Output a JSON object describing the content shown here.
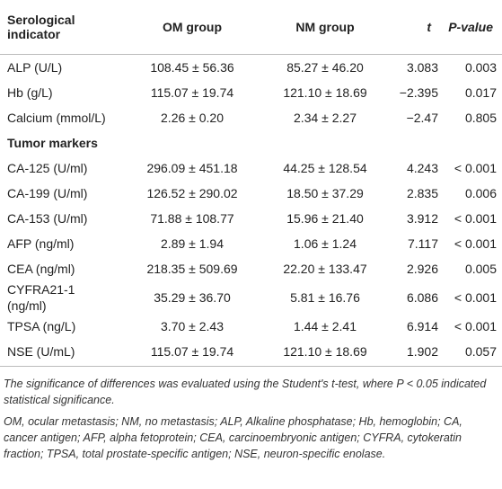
{
  "table": {
    "header": [
      "Serological indicator",
      "OM group",
      "NM group",
      "t",
      "P-value"
    ],
    "rows": [
      [
        "ALP (U/L)",
        "108.45 ± 56.36",
        "85.27 ± 46.20",
        "3.083",
        "0.003"
      ],
      [
        "Hb (g/L)",
        "115.07 ± 19.74",
        "121.10 ± 18.69",
        "−2.395",
        "0.017"
      ],
      [
        "Calcium (mmol/L)",
        "2.26 ± 0.20",
        "2.34 ± 2.27",
        "−2.47",
        "0.805"
      ],
      [
        "Tumor markers"
      ],
      [
        "CA-125 (U/ml)",
        "296.09 ± 451.18",
        "44.25 ± 128.54",
        "4.243",
        "< 0.001"
      ],
      [
        "CA-199 (U/ml)",
        "126.52 ± 290.02",
        "18.50 ± 37.29",
        "2.835",
        "0.006"
      ],
      [
        "CA-153 (U/ml)",
        "71.88 ± 108.77",
        "15.96 ± 21.40",
        "3.912",
        "< 0.001"
      ],
      [
        "AFP (ng/ml)",
        "2.89 ± 1.94",
        "1.06 ± 1.24",
        "7.117",
        "< 0.001"
      ],
      [
        "CEA (ng/ml)",
        "218.35 ± 509.69",
        "22.20 ± 133.47",
        "2.926",
        "0.005"
      ],
      [
        "CYFRA21-1 (ng/ml)",
        "35.29 ± 36.70",
        "5.81 ± 16.76",
        "6.086",
        "< 0.001"
      ],
      [
        "TPSA (ng/L)",
        "3.70 ± 2.43",
        "1.44 ± 2.41",
        "6.914",
        "< 0.001"
      ],
      [
        "NSE (U/mL)",
        "115.07 ± 19.74",
        "121.10 ± 18.69",
        "1.902",
        "0.057"
      ]
    ],
    "notes": [
      "The significance of differences was evaluated using the Student's t-test, where P < 0.05 indicated statistical significance.",
      "OM, ocular metastasis; NM, no metastasis; ALP, Alkaline phosphatase; Hb, hemoglobin; CA, cancer antigen; AFP, alpha fetoprotein; CEA, carcinoembryonic antigen; CYFRA, cytokeratin fraction; TPSA, total prostate-specific antigen; NSE, neuron-specific enolase."
    ]
  }
}
